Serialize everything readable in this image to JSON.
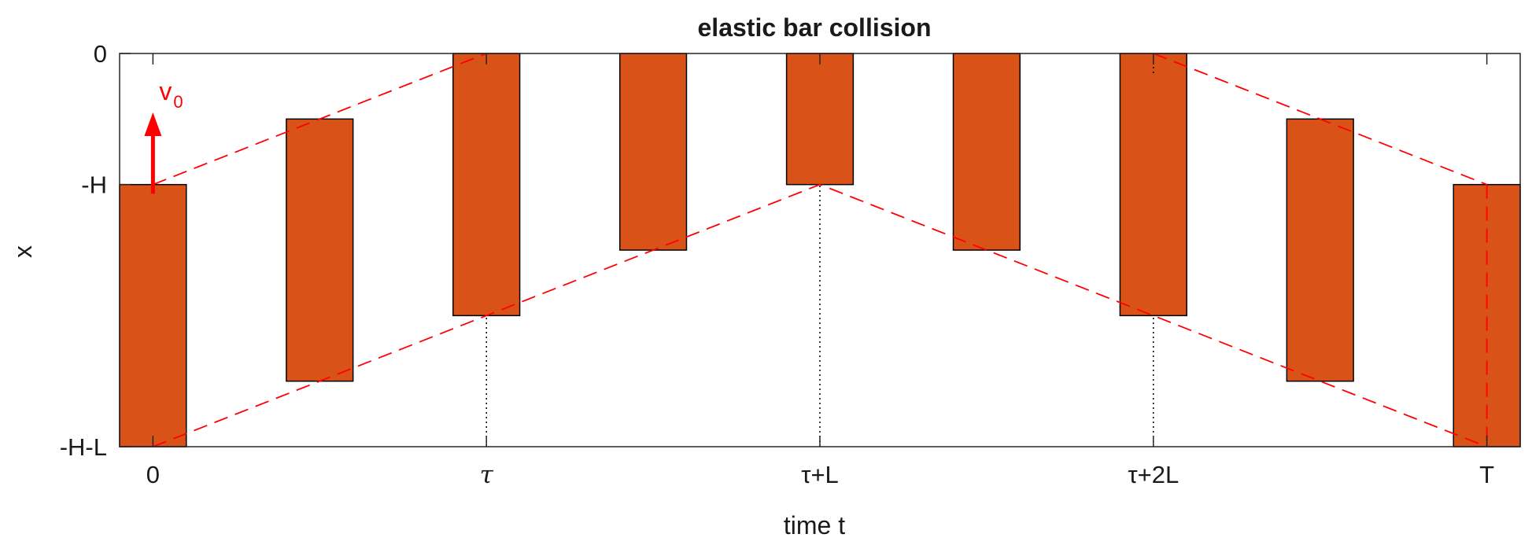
{
  "chart_data": {
    "type": "bar",
    "title": "elastic bar collision",
    "xlabel": "time t",
    "ylabel": "x",
    "xlim": [
      -0.1,
      4.1
    ],
    "ylim": [
      -3,
      0
    ],
    "x_ticks": [
      {
        "value": 0,
        "label": "0"
      },
      {
        "value": 1,
        "label": "τ"
      },
      {
        "value": 2,
        "label": "τ+L"
      },
      {
        "value": 3,
        "label": "τ+2L"
      },
      {
        "value": 4,
        "label": "T"
      }
    ],
    "y_ticks": [
      {
        "value": 0,
        "label": "0"
      },
      {
        "value": -1,
        "label": "-H"
      },
      {
        "value": -3,
        "label": "-H-L"
      }
    ],
    "bar_color": "#d95319",
    "bar_width": 0.2,
    "bars": [
      {
        "t": 0.0,
        "top": -1.0,
        "bottom": -3.0
      },
      {
        "t": 0.5,
        "top": -0.5,
        "bottom": -2.5
      },
      {
        "t": 1.0,
        "top": 0.0,
        "bottom": -2.0
      },
      {
        "t": 1.5,
        "top": 0.0,
        "bottom": -1.5
      },
      {
        "t": 2.0,
        "top": 0.0,
        "bottom": -1.0
      },
      {
        "t": 2.5,
        "top": 0.0,
        "bottom": -1.5
      },
      {
        "t": 3.0,
        "top": 0.0,
        "bottom": -2.0
      },
      {
        "t": 3.5,
        "top": -0.5,
        "bottom": -2.5
      },
      {
        "t": 4.0,
        "top": -1.0,
        "bottom": -3.0
      }
    ],
    "guide_color": "#ff0000",
    "dashed_guides": [
      [
        [
          0,
          -1
        ],
        [
          1,
          0
        ]
      ],
      [
        [
          0,
          -3
        ],
        [
          2,
          -1
        ],
        [
          4,
          -3
        ]
      ],
      [
        [
          3,
          0
        ],
        [
          4,
          -1
        ]
      ],
      [
        [
          4,
          -1
        ],
        [
          4,
          -3
        ]
      ]
    ],
    "dotted_verticals": [
      {
        "t": 1,
        "from": -3,
        "to": -2
      },
      {
        "t": 2,
        "from": -3,
        "to": -1
      },
      {
        "t": 3,
        "from": -3,
        "to": -2
      },
      {
        "t": 3,
        "from": -0.15,
        "to": 0
      }
    ],
    "velocity_arrow": {
      "t": 0,
      "from": -1.07,
      "to": -0.45,
      "label": "v",
      "subscript": "0"
    }
  }
}
